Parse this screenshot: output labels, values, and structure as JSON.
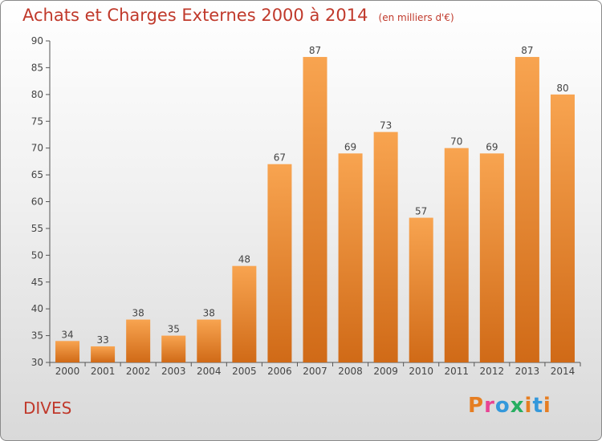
{
  "colors": {
    "title": "#c0392b",
    "bar_top": "#f8a450",
    "bar_bottom": "#d06a17",
    "axis": "#555555",
    "logo_letters": [
      "#e67e22",
      "#e84393",
      "#3498db",
      "#27ae60",
      "#e67e22",
      "#3498db"
    ]
  },
  "chart_data": {
    "type": "bar",
    "title": "Achats et Charges Externes 2000 à 2014",
    "subtitle": "(en milliers d'€)",
    "categories": [
      "2000",
      "2001",
      "2002",
      "2003",
      "2004",
      "2005",
      "2006",
      "2007",
      "2008",
      "2009",
      "2010",
      "2011",
      "2012",
      "2013",
      "2014"
    ],
    "values": [
      34,
      33,
      38,
      35,
      38,
      48,
      67,
      87,
      69,
      73,
      57,
      70,
      69,
      87,
      80
    ],
    "ylim": [
      30,
      90
    ],
    "yticks": [
      30,
      35,
      40,
      45,
      50,
      55,
      60,
      65,
      70,
      75,
      80,
      85,
      90
    ],
    "grid": false,
    "data_labels": true
  },
  "footer": {
    "commune": "DIVES",
    "logo": "Proxiti"
  }
}
